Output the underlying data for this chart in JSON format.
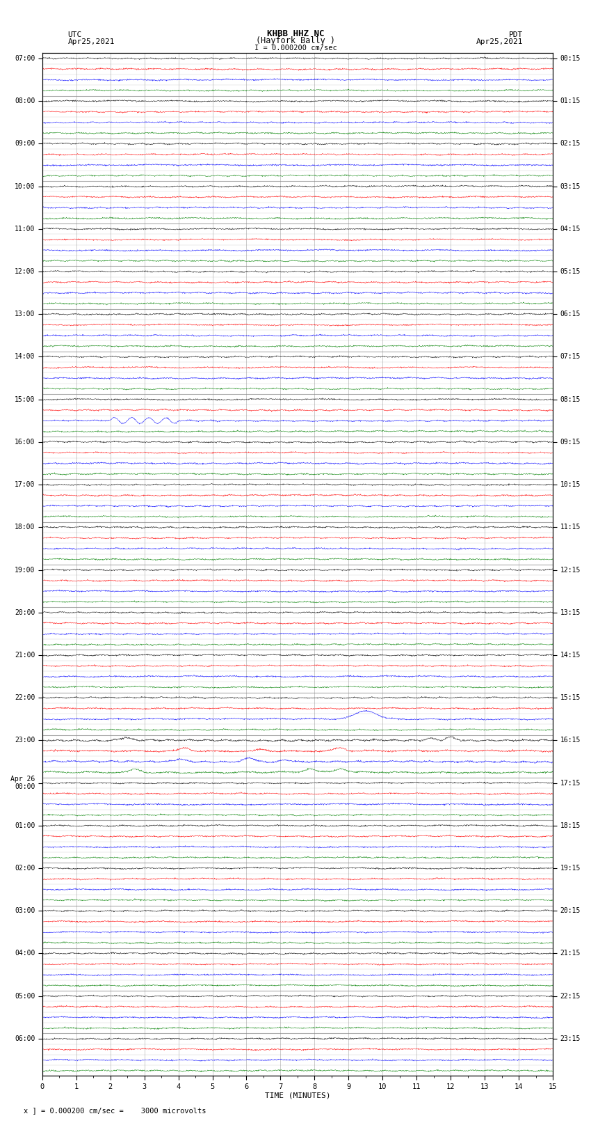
{
  "title_line1": "KHBB HHZ NC",
  "title_line2": "(Hayfork Bally )",
  "title_line3": "I = 0.000200 cm/sec",
  "left_header1": "UTC",
  "left_header2": "Apr25,2021",
  "right_header1": "PDT",
  "right_header2": "Apr25,2021",
  "xlabel": "TIME (MINUTES)",
  "footer": "x ] = 0.000200 cm/sec =    3000 microvolts",
  "utc_labels": [
    "07:00",
    "08:00",
    "09:00",
    "10:00",
    "11:00",
    "12:00",
    "13:00",
    "14:00",
    "15:00",
    "16:00",
    "17:00",
    "18:00",
    "19:00",
    "20:00",
    "21:00",
    "22:00",
    "23:00",
    "Apr 26\n00:00",
    "01:00",
    "02:00",
    "03:00",
    "04:00",
    "05:00",
    "06:00"
  ],
  "pdt_labels": [
    "00:15",
    "01:15",
    "02:15",
    "03:15",
    "04:15",
    "05:15",
    "06:15",
    "07:15",
    "08:15",
    "09:15",
    "10:15",
    "11:15",
    "12:15",
    "13:15",
    "14:15",
    "15:15",
    "16:15",
    "17:15",
    "18:15",
    "19:15",
    "20:15",
    "21:15",
    "22:15",
    "23:15"
  ],
  "n_traces": 96,
  "n_hours": 24,
  "trace_colors_cycle": [
    "black",
    "red",
    "blue",
    "green"
  ],
  "bg_color": "white",
  "grid_color": "#888888",
  "minutes_per_trace": 15,
  "x_ticks": [
    0,
    1,
    2,
    3,
    4,
    5,
    6,
    7,
    8,
    9,
    10,
    11,
    12,
    13,
    14,
    15
  ]
}
